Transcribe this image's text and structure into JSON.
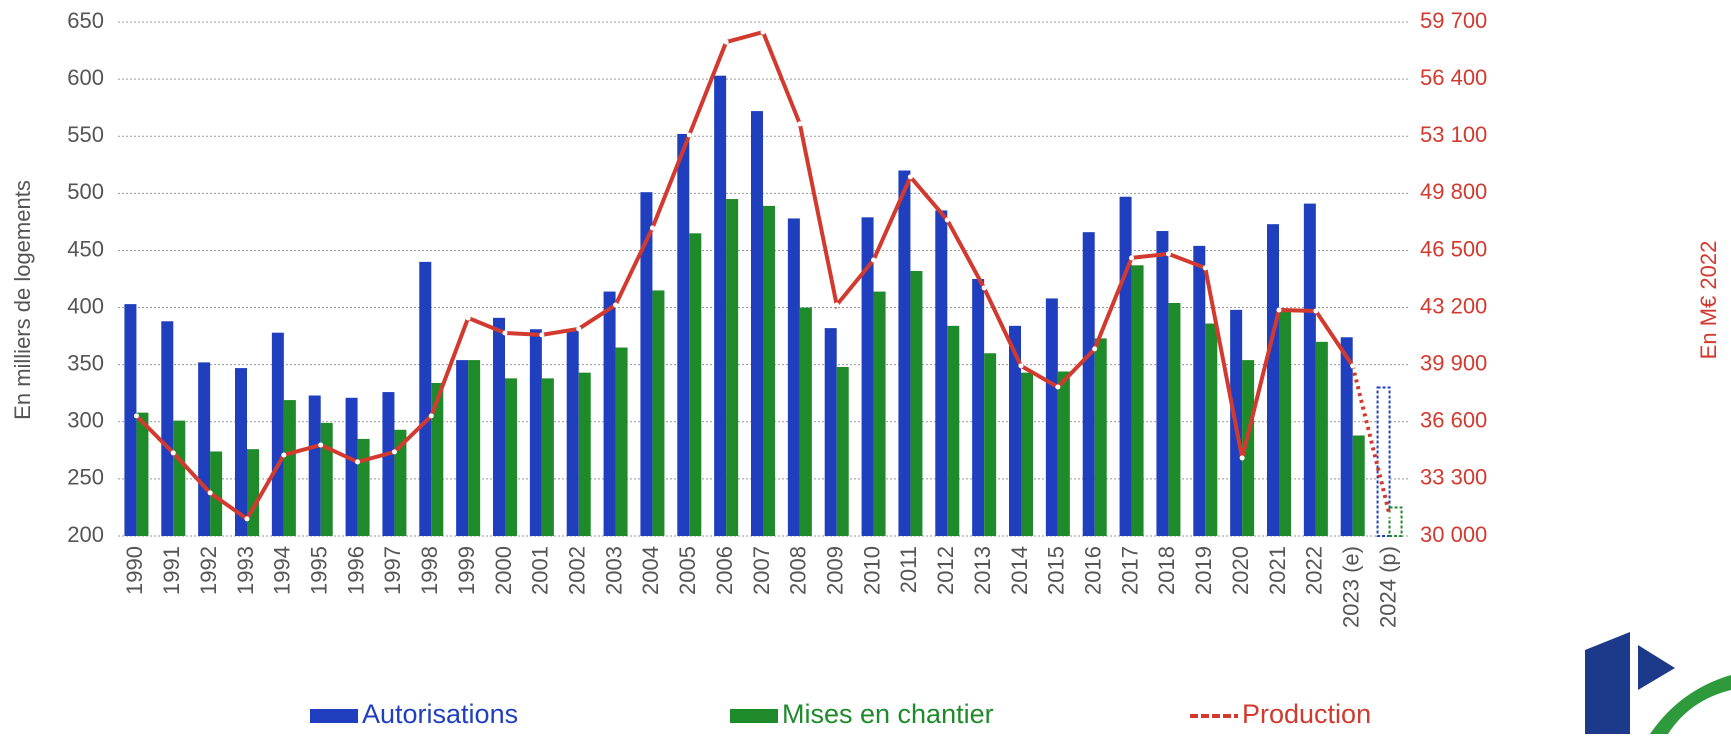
{
  "chart_data": {
    "type": "bar",
    "y_label": "En milliers de logements",
    "y2_label": "En M€ 2022",
    "categories": [
      "1990",
      "1991",
      "1992",
      "1993",
      "1994",
      "1995",
      "1996",
      "1997",
      "1998",
      "1999",
      "2000",
      "2001",
      "2002",
      "2003",
      "2004",
      "2005",
      "2006",
      "2007",
      "2008",
      "2009",
      "2010",
      "2011",
      "2012",
      "2013",
      "2014",
      "2015",
      "2016",
      "2017",
      "2018",
      "2019",
      "2020",
      "2021",
      "2022",
      "2023 (e)",
      "2024 (p)"
    ],
    "series": [
      {
        "name": "Autorisations",
        "color": "#1f3fbf",
        "type": "bar",
        "values": [
          403,
          388,
          352,
          347,
          378,
          323,
          321,
          326,
          440,
          354,
          391,
          381,
          381,
          414,
          501,
          552,
          603,
          572,
          478,
          382,
          479,
          520,
          485,
          425,
          384,
          408,
          466,
          497,
          467,
          454,
          398,
          473,
          491,
          374,
          330
        ]
      },
      {
        "name": "Mises en chantier",
        "color": "#1f8a2a",
        "type": "bar",
        "values": [
          308,
          301,
          274,
          276,
          319,
          299,
          285,
          293,
          334,
          354,
          338,
          338,
          343,
          365,
          415,
          465,
          495,
          489,
          400,
          348,
          414,
          432,
          384,
          360,
          343,
          344,
          373,
          437,
          404,
          386,
          354,
          397,
          370,
          288,
          225
        ]
      },
      {
        "name": "Production",
        "color": "#d23a2f",
        "type": "line",
        "axis": "y2",
        "values": [
          36940,
          34800,
          32490,
          30990,
          34680,
          35260,
          34280,
          34860,
          36940,
          42600,
          41730,
          41620,
          41970,
          43350,
          47800,
          53170,
          58540,
          59120,
          53810,
          43350,
          45950,
          50750,
          48260,
          44330,
          39830,
          38610,
          40810,
          46070,
          46300,
          45490,
          34510,
          43060,
          43000,
          39830,
          31220
        ]
      }
    ],
    "ylim": [
      200,
      650
    ],
    "yticks": [
      200,
      250,
      300,
      350,
      400,
      450,
      500,
      550,
      600,
      650
    ],
    "y2lim": [
      30000,
      59700
    ],
    "y2ticks": [
      {
        "value": 30000,
        "label": "30 000"
      },
      {
        "value": 33300,
        "label": "33 300"
      },
      {
        "value": 36600,
        "label": "36 600"
      },
      {
        "value": 39900,
        "label": "39 900"
      },
      {
        "value": 43200,
        "label": "43 200"
      },
      {
        "value": 46500,
        "label": "46 500"
      },
      {
        "value": 49800,
        "label": "49 800"
      },
      {
        "value": 53100,
        "label": "53 100"
      },
      {
        "value": 56400,
        "label": "56 400"
      },
      {
        "value": 59700,
        "label": "59 700"
      }
    ],
    "grid": true
  }
}
